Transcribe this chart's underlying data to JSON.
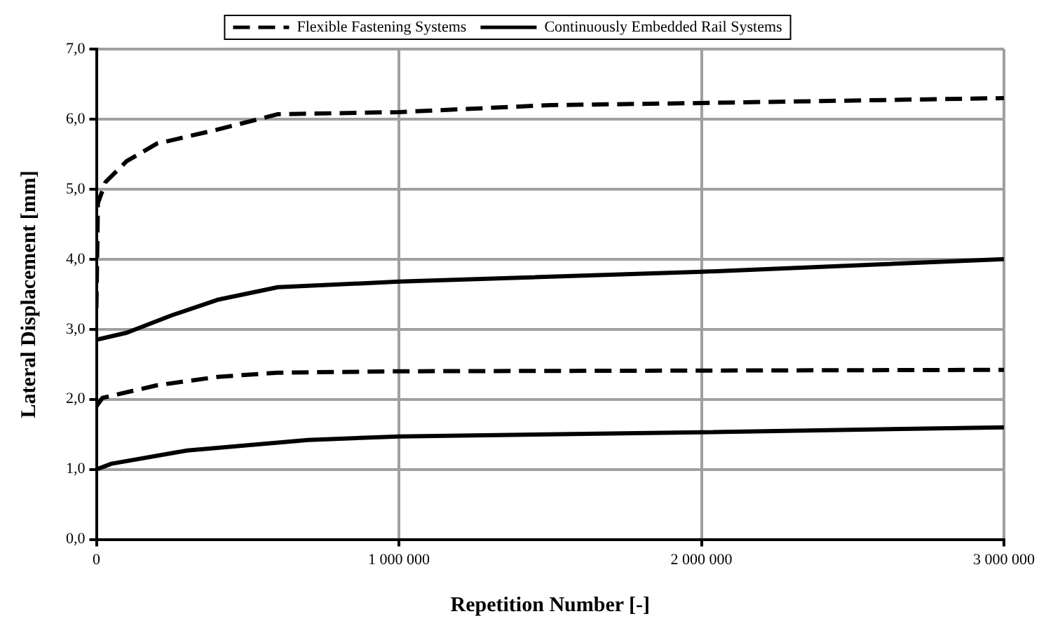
{
  "chart_data": {
    "type": "line",
    "xlabel": "Repetition Number [-]",
    "ylabel": "Lateral Displacement [mm]",
    "xlim": [
      0,
      3000000
    ],
    "xticks": [
      {
        "value": 0,
        "label": "0"
      },
      {
        "value": 1000000,
        "label": "1 000 000"
      },
      {
        "value": 2000000,
        "label": "2 000 000"
      },
      {
        "value": 3000000,
        "label": "3 000 000"
      }
    ],
    "ylim": [
      0,
      7
    ],
    "yticks": [
      {
        "value": 0,
        "label": "0,0"
      },
      {
        "value": 1,
        "label": "1,0"
      },
      {
        "value": 2,
        "label": "2,0"
      },
      {
        "value": 3,
        "label": "3,0"
      },
      {
        "value": 4,
        "label": "4,0"
      },
      {
        "value": 5,
        "label": "5,0"
      },
      {
        "value": 6,
        "label": "6,0"
      },
      {
        "value": 7,
        "label": "7,0"
      }
    ],
    "grid": true,
    "legend": "top",
    "marker": "none",
    "series": [
      {
        "name": "Flexible Fastening Systems",
        "color": "#000000",
        "line_style": "dashed",
        "x": [
          0,
          5000,
          30000,
          100000,
          200000,
          400000,
          600000,
          1000000,
          1500000,
          2000000,
          3000000
        ],
        "values": [
          3.3,
          4.8,
          5.1,
          5.4,
          5.65,
          5.85,
          6.07,
          6.1,
          6.2,
          6.23,
          6.3
        ]
      },
      {
        "name": "Continuously Embedded Rail Systems",
        "color": "#000000",
        "line_style": "solid",
        "x": [
          0,
          100000,
          250000,
          400000,
          600000,
          1000000,
          2000000,
          3000000
        ],
        "values": [
          2.85,
          2.95,
          3.2,
          3.42,
          3.6,
          3.68,
          3.82,
          4.0
        ]
      },
      {
        "color": "#000000",
        "line_style": "dashed",
        "x": [
          0,
          20000,
          200000,
          400000,
          600000,
          1000000,
          3000000
        ],
        "values": [
          1.9,
          2.02,
          2.2,
          2.32,
          2.38,
          2.4,
          2.42
        ]
      },
      {
        "color": "#000000",
        "line_style": "solid",
        "x": [
          0,
          50000,
          300000,
          700000,
          1000000,
          2000000,
          3000000
        ],
        "values": [
          1.0,
          1.08,
          1.27,
          1.42,
          1.47,
          1.53,
          1.6
        ]
      }
    ]
  }
}
